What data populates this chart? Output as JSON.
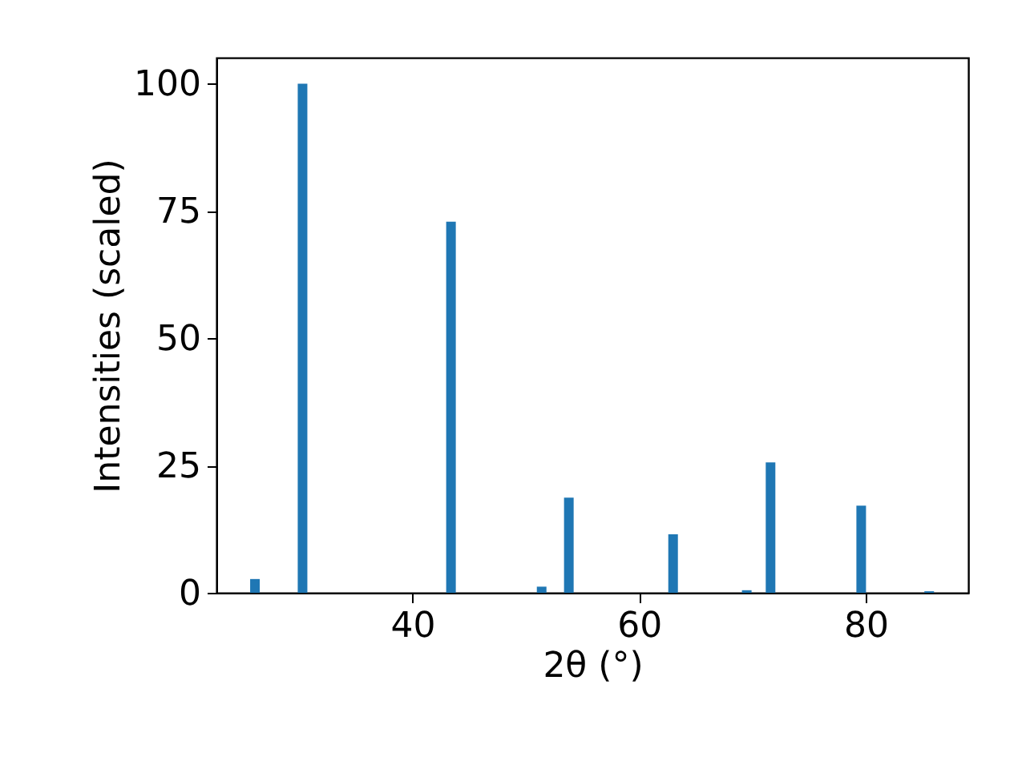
{
  "chart_data": {
    "type": "bar",
    "xlabel": "2θ (°)",
    "ylabel": "Intensities (scaled)",
    "x": [
      26.1,
      30.3,
      43.4,
      51.4,
      53.8,
      63.0,
      69.5,
      71.6,
      79.6,
      85.6
    ],
    "values": [
      2.7,
      100,
      72.9,
      1.2,
      18.7,
      11.5,
      0.5,
      25.6,
      17.1,
      0.3
    ],
    "color": "#1f77b4",
    "xlim": [
      22.7,
      89.05
    ],
    "xticks": [
      40,
      60,
      80
    ],
    "ylim": [
      0,
      105.1
    ],
    "yticks": [
      0,
      25,
      50,
      75,
      100
    ],
    "grid": false
  }
}
